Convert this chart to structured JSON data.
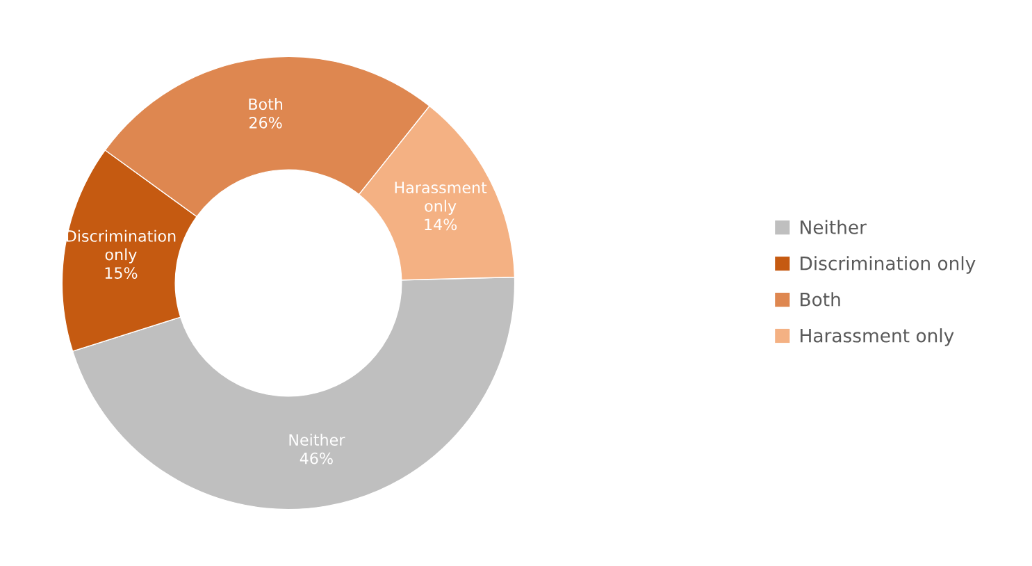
{
  "chart_data": {
    "type": "donut",
    "categories": [
      "Neither",
      "Discrimination only",
      "Both",
      "Harassment only"
    ],
    "values": [
      46,
      15,
      26,
      14
    ],
    "value_labels": [
      "46%",
      "15%",
      "26%",
      "14%"
    ],
    "colors": [
      "#bfbfbf",
      "#c55a11",
      "#de8750",
      "#f4b183"
    ],
    "legend": "right"
  }
}
